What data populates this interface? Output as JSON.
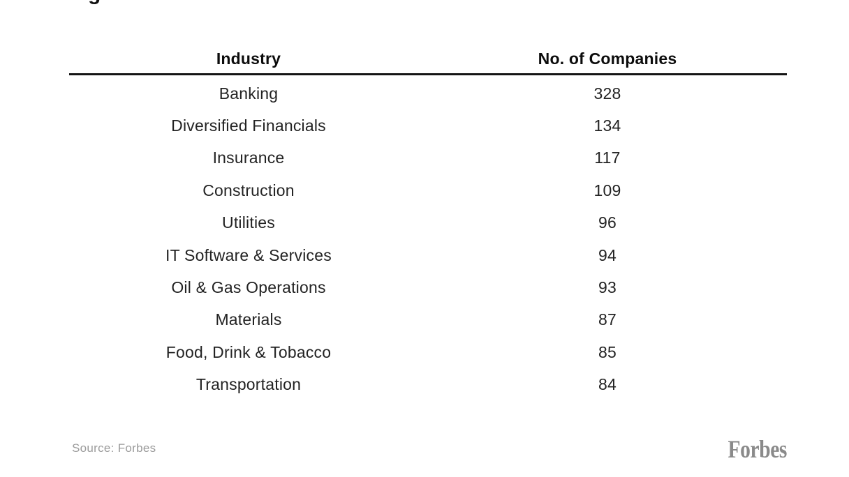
{
  "page": {
    "cropped_title_fragment": "g"
  },
  "table": {
    "columns": [
      "Industry",
      "No. of Companies"
    ],
    "rows": [
      {
        "industry": "Banking",
        "companies": "328"
      },
      {
        "industry": "Diversified Financials",
        "companies": "134"
      },
      {
        "industry": "Insurance",
        "companies": "117"
      },
      {
        "industry": "Construction",
        "companies": "109"
      },
      {
        "industry": "Utilities",
        "companies": "96"
      },
      {
        "industry": "IT Software & Services",
        "companies": "94"
      },
      {
        "industry": "Oil & Gas Operations",
        "companies": "93"
      },
      {
        "industry": "Materials",
        "companies": "87"
      },
      {
        "industry": "Food, Drink & Tobacco",
        "companies": "85"
      },
      {
        "industry": "Transportation",
        "companies": "84"
      }
    ]
  },
  "footer": {
    "source": "Source: Forbes",
    "brand": "Forbes"
  },
  "colors": {
    "background": "#ffffff",
    "header_text": "#0c0c0c",
    "row_text": "#232323",
    "rule": "#141414",
    "muted_gray": "#9b9b9b",
    "brand_gray": "#8a8a8a"
  },
  "chart_data": {
    "type": "table",
    "title": "",
    "columns": [
      "Industry",
      "No. of Companies"
    ],
    "categories": [
      "Banking",
      "Diversified Financials",
      "Insurance",
      "Construction",
      "Utilities",
      "IT Software & Services",
      "Oil & Gas Operations",
      "Materials",
      "Food, Drink & Tobacco",
      "Transportation"
    ],
    "values": [
      328,
      134,
      117,
      109,
      96,
      94,
      93,
      87,
      85,
      84
    ],
    "source": "Forbes",
    "layout": {
      "columns_alignment": "center",
      "header_rule": true,
      "grid": false
    }
  }
}
